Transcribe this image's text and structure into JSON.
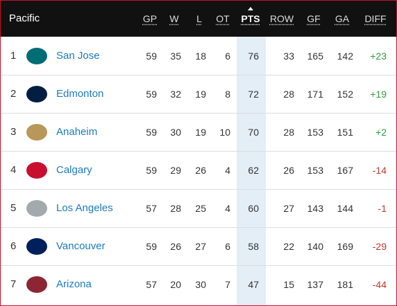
{
  "header": {
    "title": "Pacific",
    "columns": [
      "GP",
      "W",
      "L",
      "OT",
      "PTS",
      "ROW",
      "GF",
      "GA",
      "DIFF"
    ]
  },
  "rows": [
    {
      "rank": "1",
      "team": "San Jose",
      "stats": [
        "59",
        "35",
        "18",
        "6",
        "76",
        "33",
        "165",
        "142",
        "+23"
      ]
    },
    {
      "rank": "2",
      "team": "Edmonton",
      "stats": [
        "59",
        "32",
        "19",
        "8",
        "72",
        "28",
        "171",
        "152",
        "+19"
      ]
    },
    {
      "rank": "3",
      "team": "Anaheim",
      "stats": [
        "59",
        "30",
        "19",
        "10",
        "70",
        "28",
        "153",
        "151",
        "+2"
      ]
    },
    {
      "rank": "4",
      "team": "Calgary",
      "stats": [
        "59",
        "29",
        "26",
        "4",
        "62",
        "26",
        "153",
        "167",
        "-14"
      ]
    },
    {
      "rank": "5",
      "team": "Los Angeles",
      "stats": [
        "57",
        "28",
        "25",
        "4",
        "60",
        "27",
        "143",
        "144",
        "-1"
      ]
    },
    {
      "rank": "6",
      "team": "Vancouver",
      "stats": [
        "59",
        "26",
        "27",
        "6",
        "58",
        "22",
        "140",
        "169",
        "-29"
      ]
    },
    {
      "rank": "7",
      "team": "Arizona",
      "stats": [
        "57",
        "20",
        "30",
        "7",
        "47",
        "15",
        "137",
        "181",
        "-44"
      ]
    }
  ]
}
